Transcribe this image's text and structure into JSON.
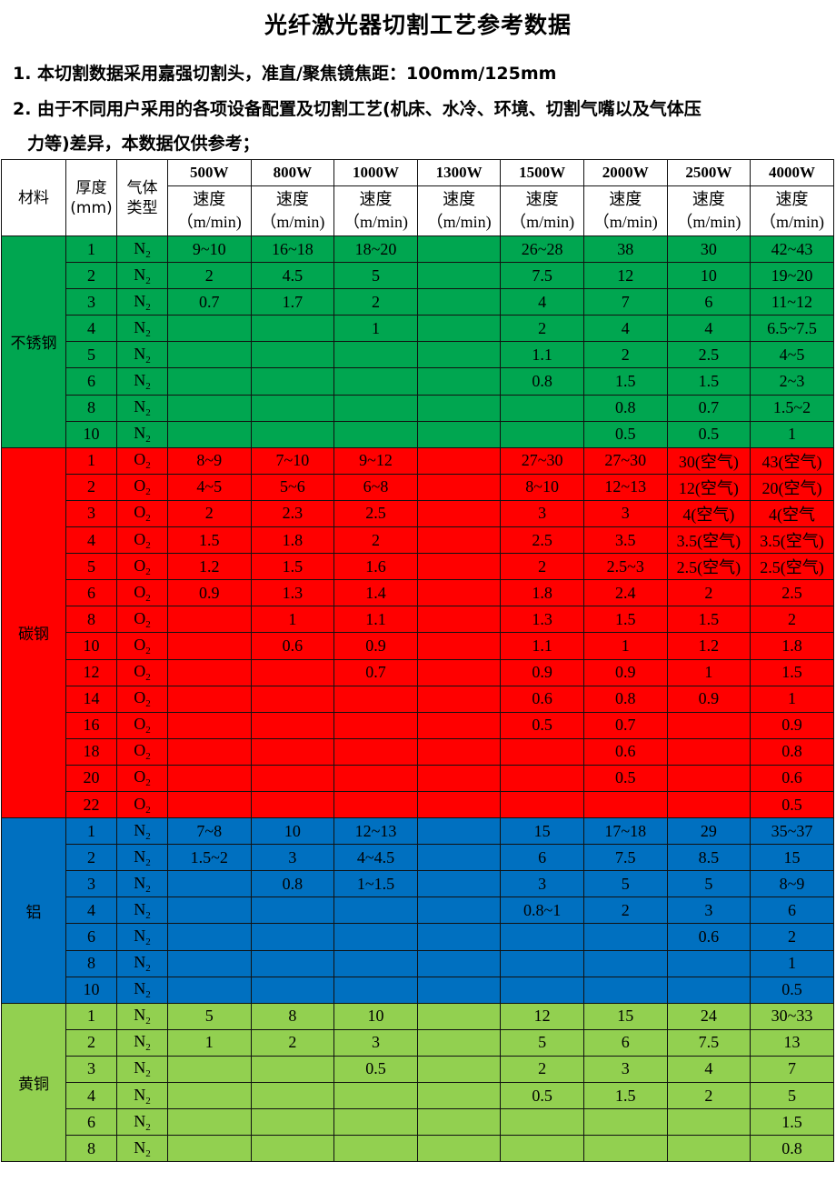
{
  "title": "光纤激光器切割工艺参考数据",
  "notes": [
    "1. 本切割数据采用嘉强切割头，准直/聚焦镜焦距：100mm/125mm",
    "2. 由于不同用户采用的各项设备配置及切割工艺(机床、水冷、环境、切割气嘴以及气体压",
    "力等)差异，本数据仅供参考；"
  ],
  "header": {
    "material": "材料",
    "thickness": "厚度(mm)",
    "gas": "气体类型",
    "powers": [
      "500W",
      "800W",
      "1000W",
      "1300W",
      "1500W",
      "2000W",
      "2500W",
      "4000W"
    ],
    "speed": "速度",
    "unit": "（m/min)"
  },
  "groups": [
    {
      "material": "不锈钢",
      "color": "#00a650",
      "rows": [
        [
          "1",
          "N2",
          "9~10",
          "16~18",
          "18~20",
          "",
          "26~28",
          "38",
          "30",
          "42~43"
        ],
        [
          "2",
          "N2",
          "2",
          "4.5",
          "5",
          "",
          "7.5",
          "12",
          "10",
          "19~20"
        ],
        [
          "3",
          "N2",
          "0.7",
          "1.7",
          "2",
          "",
          "4",
          "7",
          "6",
          "11~12"
        ],
        [
          "4",
          "N2",
          "",
          "",
          "1",
          "",
          "2",
          "4",
          "4",
          "6.5~7.5"
        ],
        [
          "5",
          "N2",
          "",
          "",
          "",
          "",
          "1.1",
          "2",
          "2.5",
          "4~5"
        ],
        [
          "6",
          "N2",
          "",
          "",
          "",
          "",
          "0.8",
          "1.5",
          "1.5",
          "2~3"
        ],
        [
          "8",
          "N2",
          "",
          "",
          "",
          "",
          "",
          "0.8",
          "0.7",
          "1.5~2"
        ],
        [
          "10",
          "N2",
          "",
          "",
          "",
          "",
          "",
          "0.5",
          "0.5",
          "1"
        ]
      ]
    },
    {
      "material": "碳钢",
      "color": "#ff0000",
      "rows": [
        [
          "1",
          "O2",
          "8~9",
          "7~10",
          "9~12",
          "",
          "27~30",
          "27~30",
          "30(空气)",
          "43(空气)"
        ],
        [
          "2",
          "O2",
          "4~5",
          "5~6",
          "6~8",
          "",
          "8~10",
          "12~13",
          "12(空气)",
          "20(空气)"
        ],
        [
          "3",
          "O2",
          "2",
          "2.3",
          "2.5",
          "",
          "3",
          "3",
          "4(空气)",
          "4(空气"
        ],
        [
          "4",
          "O2",
          "1.5",
          "1.8",
          "2",
          "",
          "2.5",
          "3.5",
          "3.5(空气)",
          "3.5(空气)"
        ],
        [
          "5",
          "O2",
          "1.2",
          "1.5",
          "1.6",
          "",
          "2",
          "2.5~3",
          "2.5(空气)",
          "2.5(空气)"
        ],
        [
          "6",
          "O2",
          "0.9",
          "1.3",
          "1.4",
          "",
          "1.8",
          "2.4",
          "2",
          "2.5"
        ],
        [
          "8",
          "O2",
          "",
          "1",
          "1.1",
          "",
          "1.3",
          "1.5",
          "1.5",
          "2"
        ],
        [
          "10",
          "O2",
          "",
          "0.6",
          "0.9",
          "",
          "1.1",
          "1",
          "1.2",
          "1.8"
        ],
        [
          "12",
          "O2",
          "",
          "",
          "0.7",
          "",
          "0.9",
          "0.9",
          "1",
          "1.5"
        ],
        [
          "14",
          "O2",
          "",
          "",
          "",
          "",
          "0.6",
          "0.8",
          "0.9",
          "1"
        ],
        [
          "16",
          "O2",
          "",
          "",
          "",
          "",
          "0.5",
          "0.7",
          "",
          "0.9"
        ],
        [
          "18",
          "O2",
          "",
          "",
          "",
          "",
          "",
          "0.6",
          "",
          "0.8"
        ],
        [
          "20",
          "O2",
          "",
          "",
          "",
          "",
          "",
          "0.5",
          "",
          "0.6"
        ],
        [
          "22",
          "O2",
          "",
          "",
          "",
          "",
          "",
          "",
          "",
          "0.5"
        ]
      ]
    },
    {
      "material": "铝",
      "color": "#0070c0",
      "rows": [
        [
          "1",
          "N2",
          "7~8",
          "10",
          "12~13",
          "",
          "15",
          "17~18",
          "29",
          "35~37"
        ],
        [
          "2",
          "N2",
          "1.5~2",
          "3",
          "4~4.5",
          "",
          "6",
          "7.5",
          "8.5",
          "15"
        ],
        [
          "3",
          "N2",
          "",
          "0.8",
          "1~1.5",
          "",
          "3",
          "5",
          "5",
          "8~9"
        ],
        [
          "4",
          "N2",
          "",
          "",
          "",
          "",
          "0.8~1",
          "2",
          "3",
          "6"
        ],
        [
          "6",
          "N2",
          "",
          "",
          "",
          "",
          "",
          "",
          "0.6",
          "2"
        ],
        [
          "8",
          "N2",
          "",
          "",
          "",
          "",
          "",
          "",
          "",
          "1"
        ],
        [
          "10",
          "N2",
          "",
          "",
          "",
          "",
          "",
          "",
          "",
          "0.5"
        ]
      ]
    },
    {
      "material": "黄铜",
      "color": "#92d050",
      "rows": [
        [
          "1",
          "N2",
          "5",
          "8",
          "10",
          "",
          "12",
          "15",
          "24",
          "30~33"
        ],
        [
          "2",
          "N2",
          "1",
          "2",
          "3",
          "",
          "5",
          "6",
          "7.5",
          "13"
        ],
        [
          "3",
          "N2",
          "",
          "",
          "0.5",
          "",
          "2",
          "3",
          "4",
          "7"
        ],
        [
          "4",
          "N2",
          "",
          "",
          "",
          "",
          "0.5",
          "1.5",
          "2",
          "5"
        ],
        [
          "6",
          "N2",
          "",
          "",
          "",
          "",
          "",
          "",
          "",
          "1.5"
        ],
        [
          "8",
          "N2",
          "",
          "",
          "",
          "",
          "",
          "",
          "",
          "0.8"
        ]
      ]
    }
  ]
}
